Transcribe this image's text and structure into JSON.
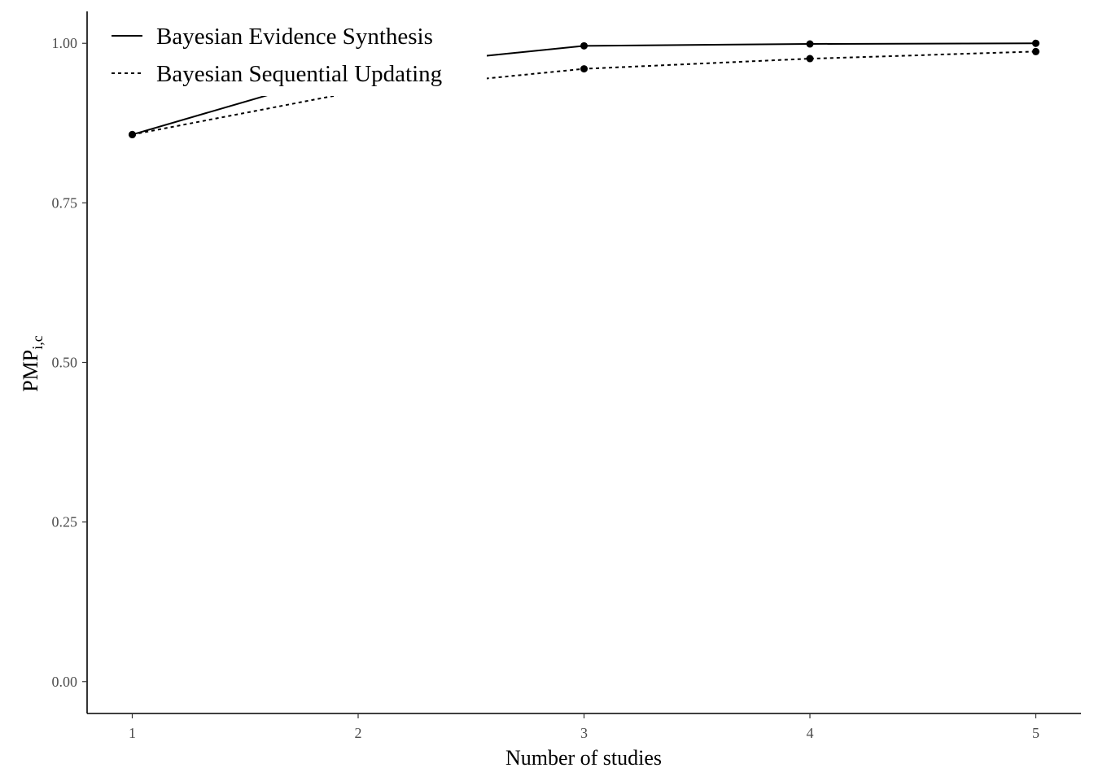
{
  "chart_data": {
    "type": "line",
    "xlabel": "Number of studies",
    "ylabel": "PMP",
    "ylabel_subscript": "i,c",
    "x": [
      1,
      2,
      3,
      4,
      5
    ],
    "x_ticks": [
      "1",
      "2",
      "3",
      "4",
      "5"
    ],
    "y_ticks": [
      "0.00",
      "0.25",
      "0.50",
      "0.75",
      "1.00"
    ],
    "y_tick_values": [
      0,
      0.25,
      0.5,
      0.75,
      1.0
    ],
    "xlim": [
      0.8,
      5.2
    ],
    "ylim": [
      -0.05,
      1.05
    ],
    "grid": false,
    "legend_position": "top-left",
    "series": [
      {
        "name": "Bayesian Evidence Synthesis",
        "linetype": "solid",
        "values": [
          0.857,
          0.96,
          0.996,
          0.999,
          1.0
        ]
      },
      {
        "name": "Bayesian Sequential Updating",
        "linetype": "dotted",
        "values": [
          0.857,
          0.925,
          0.96,
          0.976,
          0.987
        ]
      }
    ]
  }
}
